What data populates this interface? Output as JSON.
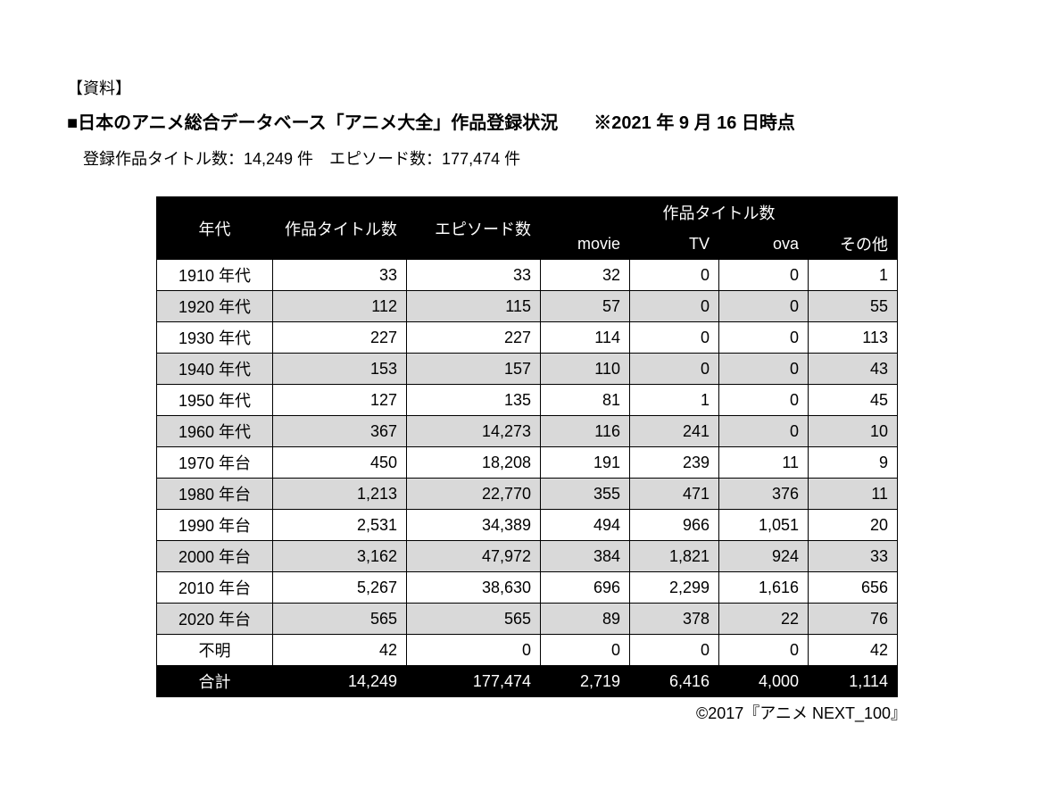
{
  "doc_label": "【資料】",
  "doc_title": "■日本のアニメ総合データベース「アニメ大全」作品登録状況　　※2021 年 9 月 16 日時点",
  "summary": "登録作品タイトル数：14,249 件　エピソード数：177,474 件",
  "table": {
    "header_top_group": "作品タイトル数",
    "columns": {
      "era": "年代",
      "titles": "作品タイトル数",
      "episodes": "エピソード数",
      "movie": "movie",
      "tv": "TV",
      "ova": "ova",
      "other": "その他"
    },
    "rows": [
      {
        "era": "1910 年代",
        "titles": "33",
        "episodes": "33",
        "movie": "32",
        "tv": "0",
        "ova": "0",
        "other": "1"
      },
      {
        "era": "1920 年代",
        "titles": "112",
        "episodes": "115",
        "movie": "57",
        "tv": "0",
        "ova": "0",
        "other": "55"
      },
      {
        "era": "1930 年代",
        "titles": "227",
        "episodes": "227",
        "movie": "114",
        "tv": "0",
        "ova": "0",
        "other": "113"
      },
      {
        "era": "1940 年代",
        "titles": "153",
        "episodes": "157",
        "movie": "110",
        "tv": "0",
        "ova": "0",
        "other": "43"
      },
      {
        "era": "1950 年代",
        "titles": "127",
        "episodes": "135",
        "movie": "81",
        "tv": "1",
        "ova": "0",
        "other": "45"
      },
      {
        "era": "1960 年代",
        "titles": "367",
        "episodes": "14,273",
        "movie": "116",
        "tv": "241",
        "ova": "0",
        "other": "10"
      },
      {
        "era": "1970 年台",
        "titles": "450",
        "episodes": "18,208",
        "movie": "191",
        "tv": "239",
        "ova": "11",
        "other": "9"
      },
      {
        "era": "1980 年台",
        "titles": "1,213",
        "episodes": "22,770",
        "movie": "355",
        "tv": "471",
        "ova": "376",
        "other": "11"
      },
      {
        "era": "1990 年台",
        "titles": "2,531",
        "episodes": "34,389",
        "movie": "494",
        "tv": "966",
        "ova": "1,051",
        "other": "20"
      },
      {
        "era": "2000 年台",
        "titles": "3,162",
        "episodes": "47,972",
        "movie": "384",
        "tv": "1,821",
        "ova": "924",
        "other": "33"
      },
      {
        "era": "2010 年台",
        "titles": "5,267",
        "episodes": "38,630",
        "movie": "696",
        "tv": "2,299",
        "ova": "1,616",
        "other": "656"
      },
      {
        "era": "2020 年台",
        "titles": "565",
        "episodes": "565",
        "movie": "89",
        "tv": "378",
        "ova": "22",
        "other": "76"
      },
      {
        "era": "不明",
        "titles": "42",
        "episodes": "0",
        "movie": "0",
        "tv": "0",
        "ova": "0",
        "other": "42"
      }
    ],
    "total": {
      "label": "合計",
      "titles": "14,249",
      "episodes": "177,474",
      "movie": "2,719",
      "tv": "6,416",
      "ova": "4,000",
      "other": "1,114"
    }
  },
  "credit": "©2017『アニメ NEXT_100』",
  "style": {
    "header_bg": "#000000",
    "header_fg": "#ffffff",
    "row_alt_bg": "#d9d9d9",
    "border_color": "#000000",
    "body_font_size": 18,
    "title_font_size": 20
  }
}
